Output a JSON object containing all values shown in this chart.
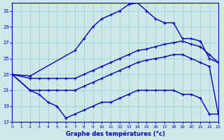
{
  "background_color": "#cce8e8",
  "grid_color": "#99cccc",
  "line_color": "#0000bb",
  "xlabel": "Graphe des températures (°c)",
  "xlim": [
    0,
    23
  ],
  "ylim": [
    17,
    32
  ],
  "xticks": [
    0,
    1,
    2,
    3,
    4,
    5,
    6,
    7,
    8,
    9,
    10,
    11,
    12,
    13,
    14,
    15,
    16,
    17,
    18,
    19,
    20,
    21,
    22,
    23
  ],
  "yticks": [
    17,
    19,
    21,
    23,
    25,
    27,
    29,
    31
  ],
  "line1_x": [
    0,
    2,
    7,
    8,
    9,
    10,
    11,
    12,
    13,
    14,
    15,
    16,
    17,
    18,
    19,
    20,
    21,
    22,
    23
  ],
  "line1_y": [
    23,
    22.8,
    26,
    27.5,
    29,
    30,
    30.5,
    31,
    31.8,
    32,
    31,
    30,
    29.5,
    29.5,
    27.5,
    27.5,
    27.2,
    25.0,
    24.5
  ],
  "line2_x": [
    0,
    2,
    3,
    4,
    5,
    6,
    7,
    8,
    9,
    10,
    11,
    12,
    13,
    14,
    15,
    16,
    17,
    18,
    19,
    20,
    21,
    22,
    23
  ],
  "line2_y": [
    23,
    22.5,
    22.5,
    22.5,
    22.5,
    22.5,
    22.5,
    23.0,
    23.5,
    24.0,
    24.5,
    25.0,
    25.5,
    26.0,
    26.2,
    26.5,
    26.8,
    27.0,
    27.2,
    26.8,
    26.5,
    25.5,
    24.5
  ],
  "line3_x": [
    0,
    2,
    3,
    4,
    5,
    6,
    7,
    8,
    9,
    10,
    11,
    12,
    13,
    14,
    15,
    16,
    17,
    18,
    19,
    20,
    21,
    22,
    23
  ],
  "line3_y": [
    23,
    21.0,
    21.0,
    21.0,
    21.0,
    21.0,
    21.0,
    21.5,
    22.0,
    22.5,
    23.0,
    23.5,
    24.0,
    24.5,
    24.8,
    25.0,
    25.2,
    25.5,
    25.5,
    25.0,
    24.5,
    24.0,
    18.0
  ],
  "line4_x": [
    0,
    2,
    3,
    4,
    5,
    6,
    7,
    8,
    9,
    10,
    11,
    12,
    13,
    14,
    15,
    16,
    17,
    18,
    19,
    20,
    21,
    22,
    23
  ],
  "line4_y": [
    23,
    21.0,
    20.5,
    19.5,
    19.0,
    17.5,
    18.0,
    18.5,
    19.0,
    19.5,
    19.5,
    20.0,
    20.5,
    21.0,
    21.0,
    21.0,
    21.0,
    21.0,
    20.5,
    20.5,
    20.0,
    18.0,
    18.0
  ]
}
